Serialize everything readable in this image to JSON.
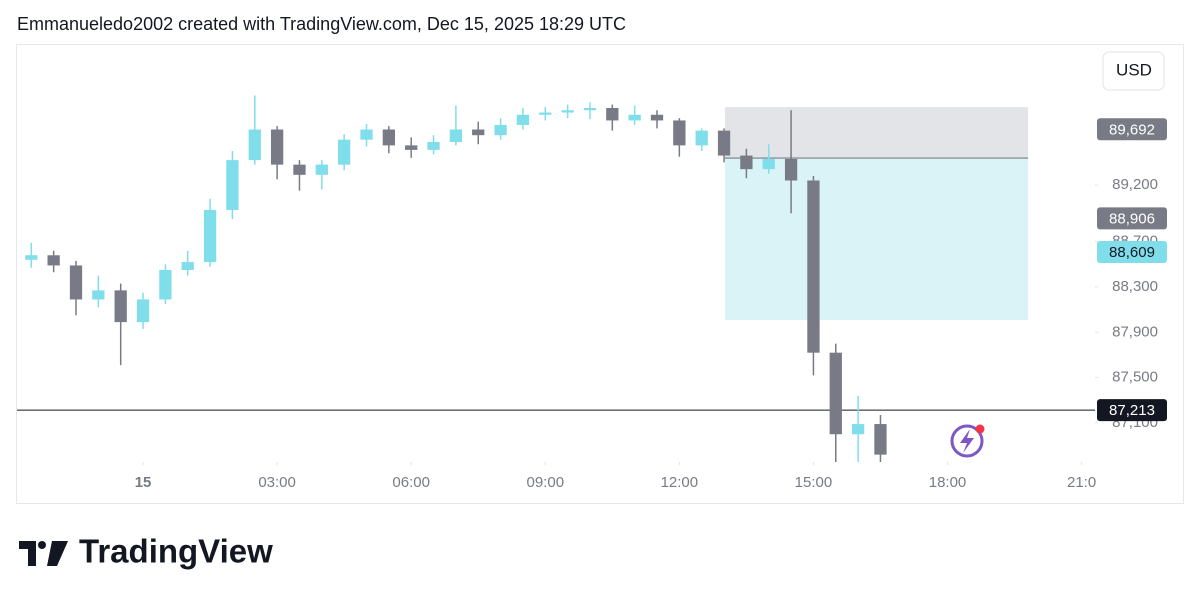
{
  "chart_data": {
    "type": "candlestick",
    "title": "Emmanueledo2002 created with TradingView.com, Dec 15, 2025 18:29 UTC",
    "currency": "USD",
    "x": [
      -2.5,
      -2,
      -1.5,
      -1,
      -0.5,
      0,
      0.5,
      1,
      1.5,
      2,
      2.5,
      3,
      3.5,
      4,
      4.5,
      5,
      5.5,
      6,
      6.5,
      7,
      7.5,
      8,
      8.5,
      9,
      9.5,
      10,
      10.5,
      11,
      11.5,
      12,
      12.5,
      13,
      13.5,
      14,
      14.5,
      15,
      15.5,
      16,
      16.5
    ],
    "open": [
      88540,
      88580,
      88490,
      88190,
      88270,
      87990,
      88190,
      88450,
      88520,
      88980,
      89420,
      89690,
      89380,
      89290,
      89380,
      89600,
      89690,
      89550,
      89510,
      89580,
      89690,
      89640,
      89730,
      89820,
      89840,
      89860,
      89880,
      89770,
      89820,
      89770,
      89550,
      89680,
      89460,
      89340,
      89430,
      89240,
      87720,
      87000,
      87090
    ],
    "high": [
      88690,
      88620,
      88530,
      88400,
      88330,
      88250,
      88500,
      88620,
      89080,
      89500,
      89990,
      89720,
      89420,
      89420,
      89650,
      89740,
      89720,
      89620,
      89640,
      89900,
      89760,
      89790,
      89880,
      89890,
      89910,
      89930,
      89910,
      89900,
      89860,
      89790,
      89700,
      89700,
      89520,
      89560,
      89860,
      89280,
      87800,
      87340,
      87170
    ],
    "low": [
      88470,
      88430,
      88050,
      88120,
      87610,
      87930,
      88150,
      88400,
      88480,
      88900,
      89380,
      89250,
      89150,
      89160,
      89330,
      89540,
      89480,
      89440,
      89470,
      89550,
      89560,
      89600,
      89690,
      89770,
      89790,
      89780,
      89680,
      89730,
      89700,
      89450,
      89500,
      89400,
      89260,
      89300,
      88950,
      87520,
      86700,
      86750,
      86700
    ],
    "close": [
      88580,
      88490,
      88190,
      88270,
      87990,
      88190,
      88450,
      88520,
      88980,
      89420,
      89690,
      89380,
      89290,
      89380,
      89600,
      89690,
      89550,
      89510,
      89580,
      89690,
      89640,
      89730,
      89820,
      89840,
      89860,
      89880,
      89770,
      89820,
      89770,
      89550,
      89680,
      89460,
      89340,
      89430,
      89240,
      87720,
      87000,
      87090,
      86820
    ],
    "up_color": "#80deea",
    "down_color": "#787b86",
    "xlim": [
      -2.82,
      21.3
    ],
    "xticks": [
      {
        "value": 0,
        "label": "15"
      },
      {
        "value": 3,
        "label": "03:00"
      },
      {
        "value": 6,
        "label": "06:00"
      },
      {
        "value": 9,
        "label": "09:00"
      },
      {
        "value": 12,
        "label": "12:00"
      },
      {
        "value": 15,
        "label": "15:00"
      },
      {
        "value": 18,
        "label": "18:00"
      },
      {
        "value": 21,
        "label": "21:0"
      }
    ],
    "ylim": [
      86755,
      90436
    ],
    "yticks": [
      {
        "value": 87100,
        "label": "87,100"
      },
      {
        "value": 87500,
        "label": "87,500"
      },
      {
        "value": 87900,
        "label": "87,900"
      },
      {
        "value": 88300,
        "label": "88,300"
      },
      {
        "value": 88700,
        "label": "88,700"
      },
      {
        "value": 89200,
        "label": "89,200"
      }
    ],
    "position": {
      "start": 13.02,
      "end": 19.8,
      "stop": 89888,
      "entry": 89438,
      "target": 88008,
      "stop_color": "#e3e4e8",
      "target_color": "#daf3f7"
    },
    "price_labels": [
      {
        "value": 89692,
        "label": "89,692",
        "color": "#787b86",
        "text_color": "#ffffff"
      },
      {
        "value": 88906,
        "label": "88,906",
        "color": "#787b86",
        "text_color": "#ffffff"
      },
      {
        "value": 88609,
        "label": "88,609",
        "color": "#80deea",
        "text_color": "#131722"
      },
      {
        "value": 87213,
        "label": "87,213",
        "color": "#131722",
        "text_color": "#ffffff",
        "line": true
      }
    ]
  },
  "footer": {
    "brand": "TradingView"
  }
}
